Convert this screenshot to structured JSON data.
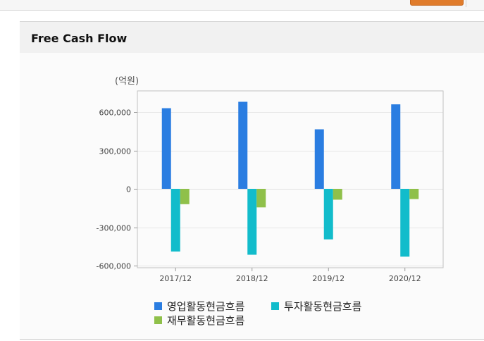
{
  "header": {
    "title": "Free Cash Flow"
  },
  "chart_data": {
    "type": "bar",
    "title": "",
    "unit_label": "(억원)",
    "xlabel": "",
    "ylabel": "",
    "categories": [
      "2017/12",
      "2018/12",
      "2019/12",
      "2020/12"
    ],
    "series": [
      {
        "name": "영업활동현금흐름",
        "color": "#2a7de1",
        "values": [
          630000,
          680000,
          465000,
          660000
        ]
      },
      {
        "name": "투자활동현금흐름",
        "color": "#12bccb",
        "values": [
          -490000,
          -515000,
          -395000,
          -530000
        ]
      },
      {
        "name": "재무활동현금흐름",
        "color": "#8fc04a",
        "values": [
          -120000,
          -145000,
          -85000,
          -80000
        ]
      }
    ],
    "ylim": [
      -620000,
      760000
    ],
    "yticks": [
      600000,
      300000,
      0,
      -300000,
      -600000
    ],
    "ytick_labels": [
      "600,000",
      "300,000",
      "0",
      "-300,000",
      "-600,000"
    ],
    "grid": true,
    "legend_position": "bottom-left"
  }
}
